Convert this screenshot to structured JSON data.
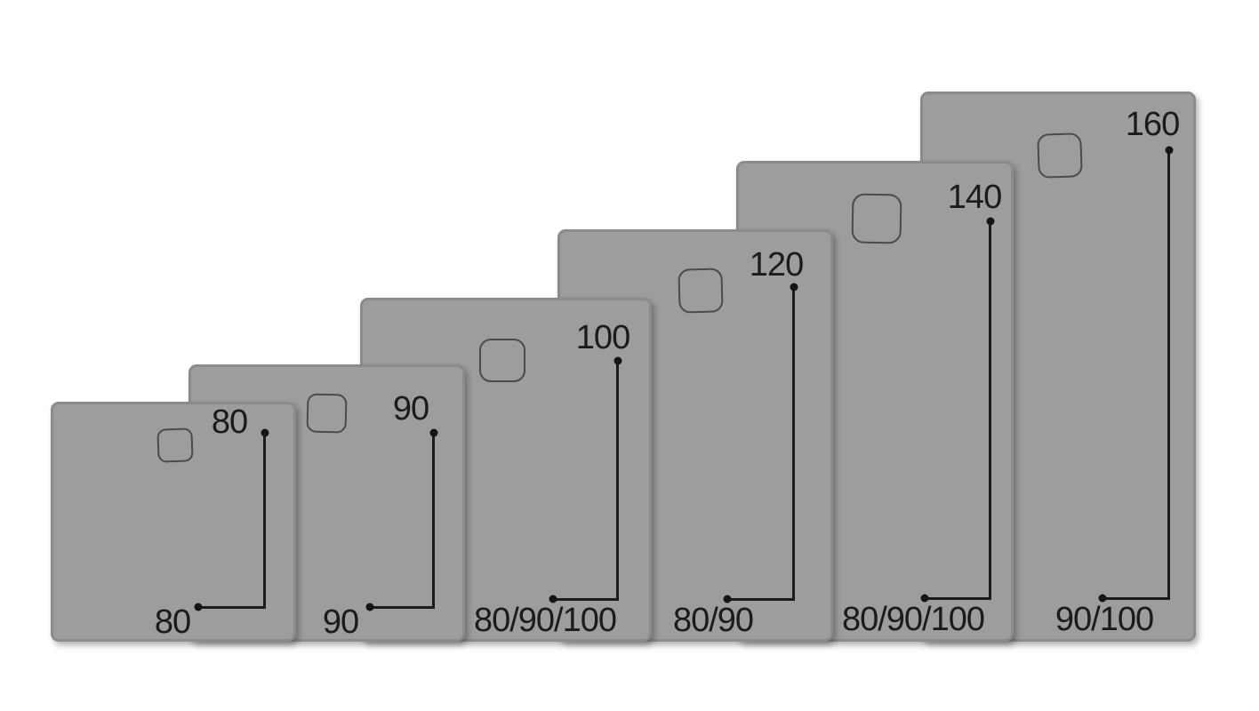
{
  "diagram": {
    "description": "Shower tray size comparison diagram: six bottom-aligned gray trays of increasing depth, each with a drain outline and dimension callouts",
    "background": "#ffffff",
    "colors": {
      "tray_fill": "#9d9d9d",
      "tray_border": "#8b8b8b",
      "dimension_line": "#1b1b1b",
      "label_text": "#1b1b1b",
      "drain_outline": "#2b2b2b"
    },
    "trays": [
      {
        "name": "tray-80",
        "depth_label": "80",
        "width_label": "80"
      },
      {
        "name": "tray-90",
        "depth_label": "90",
        "width_label": "90"
      },
      {
        "name": "tray-100",
        "depth_label": "100",
        "width_label": "80/90/100"
      },
      {
        "name": "tray-120",
        "depth_label": "120",
        "width_label": "80/90"
      },
      {
        "name": "tray-140",
        "depth_label": "140",
        "width_label": "80/90/100"
      },
      {
        "name": "tray-160",
        "depth_label": "160",
        "width_label": "90/100"
      }
    ]
  }
}
